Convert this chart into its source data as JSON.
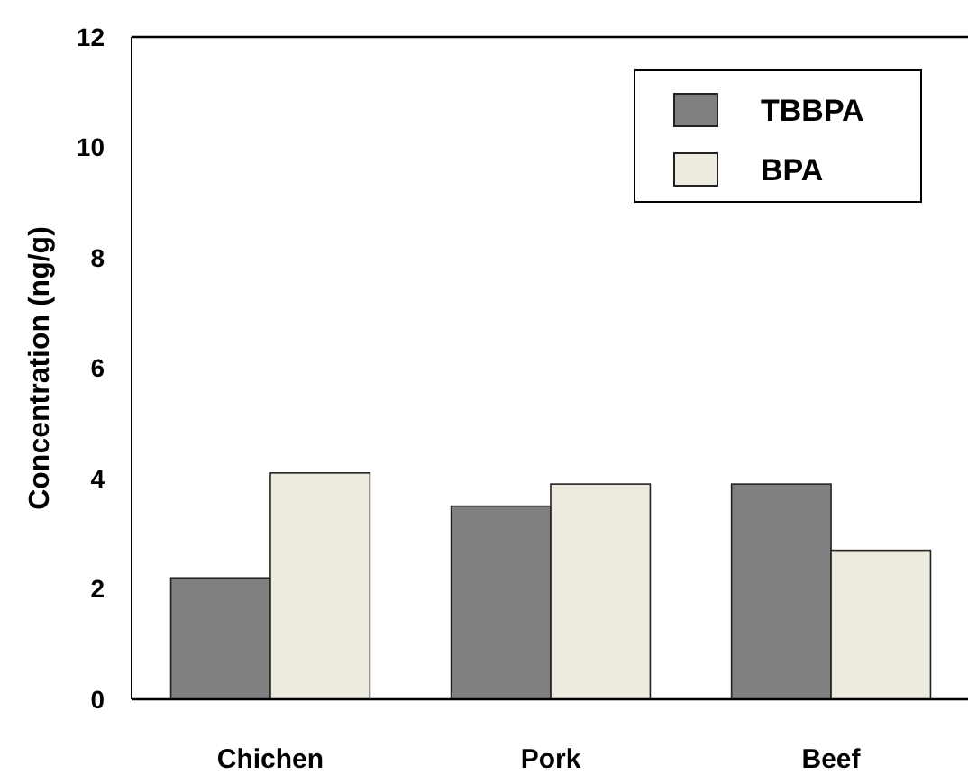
{
  "chart_data": {
    "type": "bar",
    "ylabel": "Concentration (ng/g)",
    "categories": [
      "Chichen",
      "Pork",
      "Beef"
    ],
    "series": [
      {
        "name": "TBBPA",
        "color": "#808080",
        "values": [
          2.2,
          3.5,
          3.9
        ]
      },
      {
        "name": "BPA",
        "color": "#edebe0",
        "values": [
          4.1,
          3.9,
          2.7
        ]
      }
    ],
    "ylim": [
      0,
      12
    ],
    "yticks": [
      0,
      2,
      4,
      6,
      8,
      10,
      12
    ],
    "legend": "top right"
  }
}
